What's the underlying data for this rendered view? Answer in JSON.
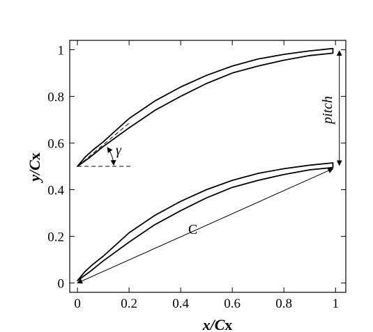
{
  "figure": {
    "x_axis": {
      "label_main": "x/C",
      "label_sub": "x",
      "ticks": [
        "0",
        "0.2",
        "0.4",
        "0.6",
        "0.8",
        "1"
      ],
      "tick_values": [
        0,
        0.2,
        0.4,
        0.6,
        0.8,
        1
      ],
      "range": [
        -0.03,
        1.04
      ]
    },
    "y_axis": {
      "label_main": "y/C",
      "label_sub": "x",
      "ticks": [
        "0",
        "0.2",
        "0.4",
        "0.6",
        "0.8",
        "1"
      ],
      "tick_values": [
        0,
        0.2,
        0.4,
        0.6,
        0.8,
        1
      ],
      "range": [
        -0.04,
        1.04
      ]
    },
    "annotations": {
      "gamma": "γ",
      "pitch": "pitch",
      "chord": "C"
    },
    "blade": {
      "pressure_side": [
        [
          0,
          0.01
        ],
        [
          0.05,
          0.05
        ],
        [
          0.1,
          0.095
        ],
        [
          0.2,
          0.175
        ],
        [
          0.3,
          0.25
        ],
        [
          0.4,
          0.31
        ],
        [
          0.5,
          0.365
        ],
        [
          0.6,
          0.41
        ],
        [
          0.7,
          0.44
        ],
        [
          0.8,
          0.465
        ],
        [
          0.9,
          0.485
        ],
        [
          0.99,
          0.495
        ]
      ],
      "suction_side": [
        [
          0,
          0.01
        ],
        [
          0.03,
          0.05
        ],
        [
          0.06,
          0.08
        ],
        [
          0.1,
          0.115
        ],
        [
          0.15,
          0.165
        ],
        [
          0.2,
          0.215
        ],
        [
          0.3,
          0.29
        ],
        [
          0.4,
          0.35
        ],
        [
          0.5,
          0.4
        ],
        [
          0.6,
          0.44
        ],
        [
          0.7,
          0.47
        ],
        [
          0.8,
          0.49
        ],
        [
          0.9,
          0.505
        ],
        [
          0.99,
          0.515
        ]
      ],
      "pitch": 0.49
    },
    "stagger_line": {
      "x_end": 0.205
    }
  }
}
